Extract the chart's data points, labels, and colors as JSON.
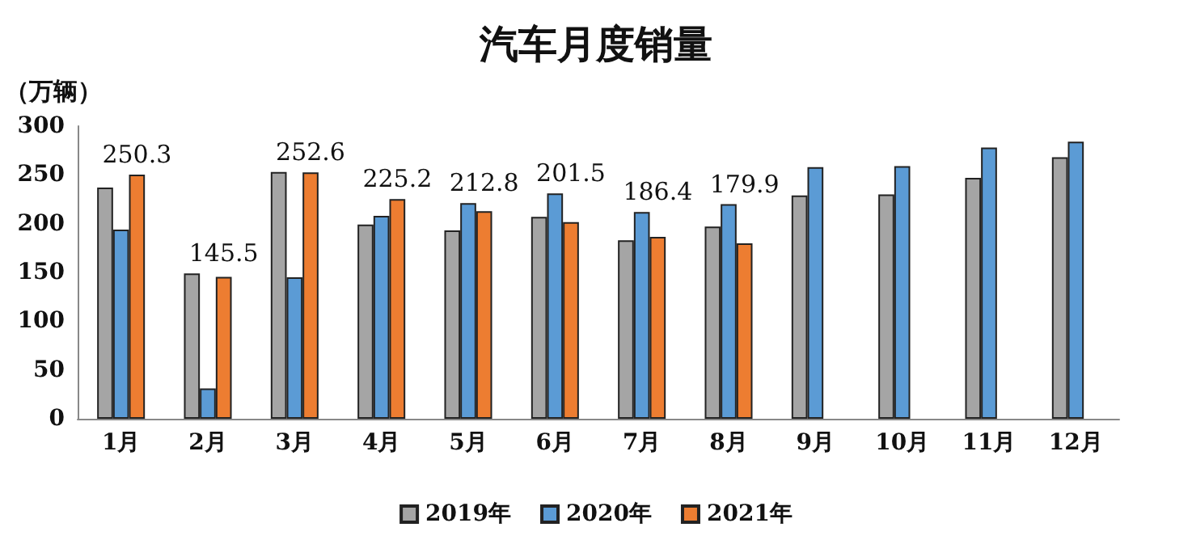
{
  "chart_data": {
    "type": "bar",
    "title": "汽车月度销量",
    "ylabel": "（万辆）",
    "categories": [
      "1月",
      "2月",
      "3月",
      "4月",
      "5月",
      "6月",
      "7月",
      "8月",
      "9月",
      "10月",
      "11月",
      "12月"
    ],
    "series": [
      {
        "name": "2019年",
        "color": "#a5a5a5",
        "values": [
          237,
          149,
          253,
          199,
          193,
          207,
          183,
          197,
          229,
          230,
          247,
          268
        ]
      },
      {
        "name": "2020年",
        "color": "#5b9bd5",
        "values": [
          194,
          31,
          145,
          208,
          221,
          231,
          212,
          220,
          258,
          259,
          278,
          284
        ]
      },
      {
        "name": "2021年",
        "color": "#ed7d31",
        "values": [
          250.3,
          145.5,
          252.6,
          225.2,
          212.8,
          201.5,
          186.4,
          179.9,
          null,
          null,
          null,
          null
        ],
        "value_labels": [
          "250.3",
          "145.5",
          "252.6",
          "225.2",
          "212.8",
          "201.5",
          "186.4",
          "179.9",
          null,
          null,
          null,
          null
        ]
      }
    ],
    "ylim": [
      0,
      300
    ],
    "yticks": [
      0,
      50,
      100,
      150,
      200,
      250,
      300
    ],
    "grid": false,
    "legend": "bottom"
  }
}
